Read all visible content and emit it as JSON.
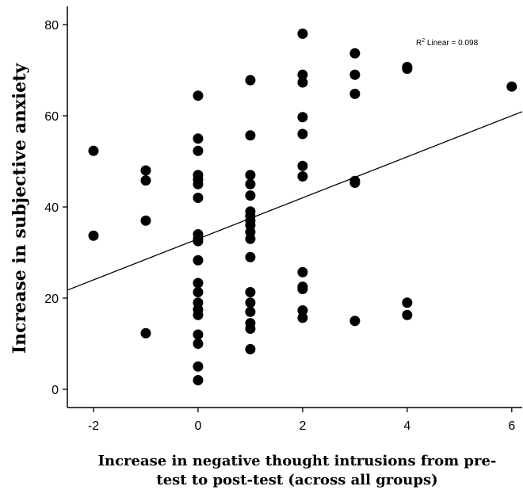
{
  "chart_data": {
    "type": "scatter",
    "title": "",
    "xlabel_lines": [
      "Increase in negative thought intrusions from pre-",
      "test to post-test (across all groups)"
    ],
    "ylabel": "Increase in subjective anxiety",
    "xlim": [
      -2.5,
      6.2
    ],
    "ylim": [
      -4,
      84
    ],
    "x_ticks": [
      -2,
      0,
      2,
      4,
      6
    ],
    "x_tick_labels": [
      "-2",
      "0",
      "2",
      "4",
      "6"
    ],
    "y_ticks": [
      0,
      20,
      40,
      60,
      80
    ],
    "y_tick_labels": [
      "0",
      "20",
      "40",
      "60",
      "80"
    ],
    "grid": false,
    "fit_line": {
      "type": "linear",
      "intercept": 33.0,
      "slope": 4.5
    },
    "annotation": {
      "prefix": "R",
      "superscript": "2",
      "text": " Linear = 0.098"
    },
    "points": [
      {
        "x": -2,
        "y": 52.3
      },
      {
        "x": -2,
        "y": 33.7
      },
      {
        "x": -1,
        "y": 48.0
      },
      {
        "x": -1,
        "y": 45.8
      },
      {
        "x": -1,
        "y": 37.0
      },
      {
        "x": -1,
        "y": 12.3
      },
      {
        "x": 0,
        "y": 64.4
      },
      {
        "x": 0,
        "y": 55.0
      },
      {
        "x": 0,
        "y": 52.3
      },
      {
        "x": 0,
        "y": 47.0
      },
      {
        "x": 0,
        "y": 46.0
      },
      {
        "x": 0,
        "y": 45.0
      },
      {
        "x": 0,
        "y": 42.0
      },
      {
        "x": 0,
        "y": 34.0
      },
      {
        "x": 0,
        "y": 33.0
      },
      {
        "x": 0,
        "y": 32.5
      },
      {
        "x": 0,
        "y": 28.3
      },
      {
        "x": 0,
        "y": 23.3
      },
      {
        "x": 0,
        "y": 21.3
      },
      {
        "x": 0,
        "y": 19.0
      },
      {
        "x": 0,
        "y": 17.5
      },
      {
        "x": 0,
        "y": 16.3
      },
      {
        "x": 0,
        "y": 12.0
      },
      {
        "x": 0,
        "y": 10.0
      },
      {
        "x": 0,
        "y": 5.0
      },
      {
        "x": 0,
        "y": 2.0
      },
      {
        "x": 1,
        "y": 67.8
      },
      {
        "x": 1,
        "y": 55.7
      },
      {
        "x": 1,
        "y": 47.0
      },
      {
        "x": 1,
        "y": 45.0
      },
      {
        "x": 1,
        "y": 42.5
      },
      {
        "x": 1,
        "y": 39.0
      },
      {
        "x": 1,
        "y": 38.0
      },
      {
        "x": 1,
        "y": 37.0
      },
      {
        "x": 1,
        "y": 36.0
      },
      {
        "x": 1,
        "y": 34.5
      },
      {
        "x": 1,
        "y": 33.0
      },
      {
        "x": 1,
        "y": 29.0
      },
      {
        "x": 1,
        "y": 21.3
      },
      {
        "x": 1,
        "y": 19.0
      },
      {
        "x": 1,
        "y": 17.0
      },
      {
        "x": 1,
        "y": 14.5
      },
      {
        "x": 1,
        "y": 13.3
      },
      {
        "x": 1,
        "y": 8.8
      },
      {
        "x": 2,
        "y": 78.0
      },
      {
        "x": 2,
        "y": 69.0
      },
      {
        "x": 2,
        "y": 67.3
      },
      {
        "x": 2,
        "y": 59.7
      },
      {
        "x": 2,
        "y": 56.0
      },
      {
        "x": 2,
        "y": 49.0
      },
      {
        "x": 2,
        "y": 46.7
      },
      {
        "x": 2,
        "y": 25.7
      },
      {
        "x": 2,
        "y": 22.5
      },
      {
        "x": 2,
        "y": 22.0
      },
      {
        "x": 2,
        "y": 17.3
      },
      {
        "x": 2,
        "y": 15.7
      },
      {
        "x": 3,
        "y": 73.7
      },
      {
        "x": 3,
        "y": 69.0
      },
      {
        "x": 3,
        "y": 64.8
      },
      {
        "x": 3,
        "y": 45.7
      },
      {
        "x": 3,
        "y": 45.3
      },
      {
        "x": 3,
        "y": 15.0
      },
      {
        "x": 4,
        "y": 70.7
      },
      {
        "x": 4,
        "y": 70.3
      },
      {
        "x": 4,
        "y": 19.0
      },
      {
        "x": 4,
        "y": 16.3
      },
      {
        "x": 6,
        "y": 66.4
      }
    ]
  }
}
